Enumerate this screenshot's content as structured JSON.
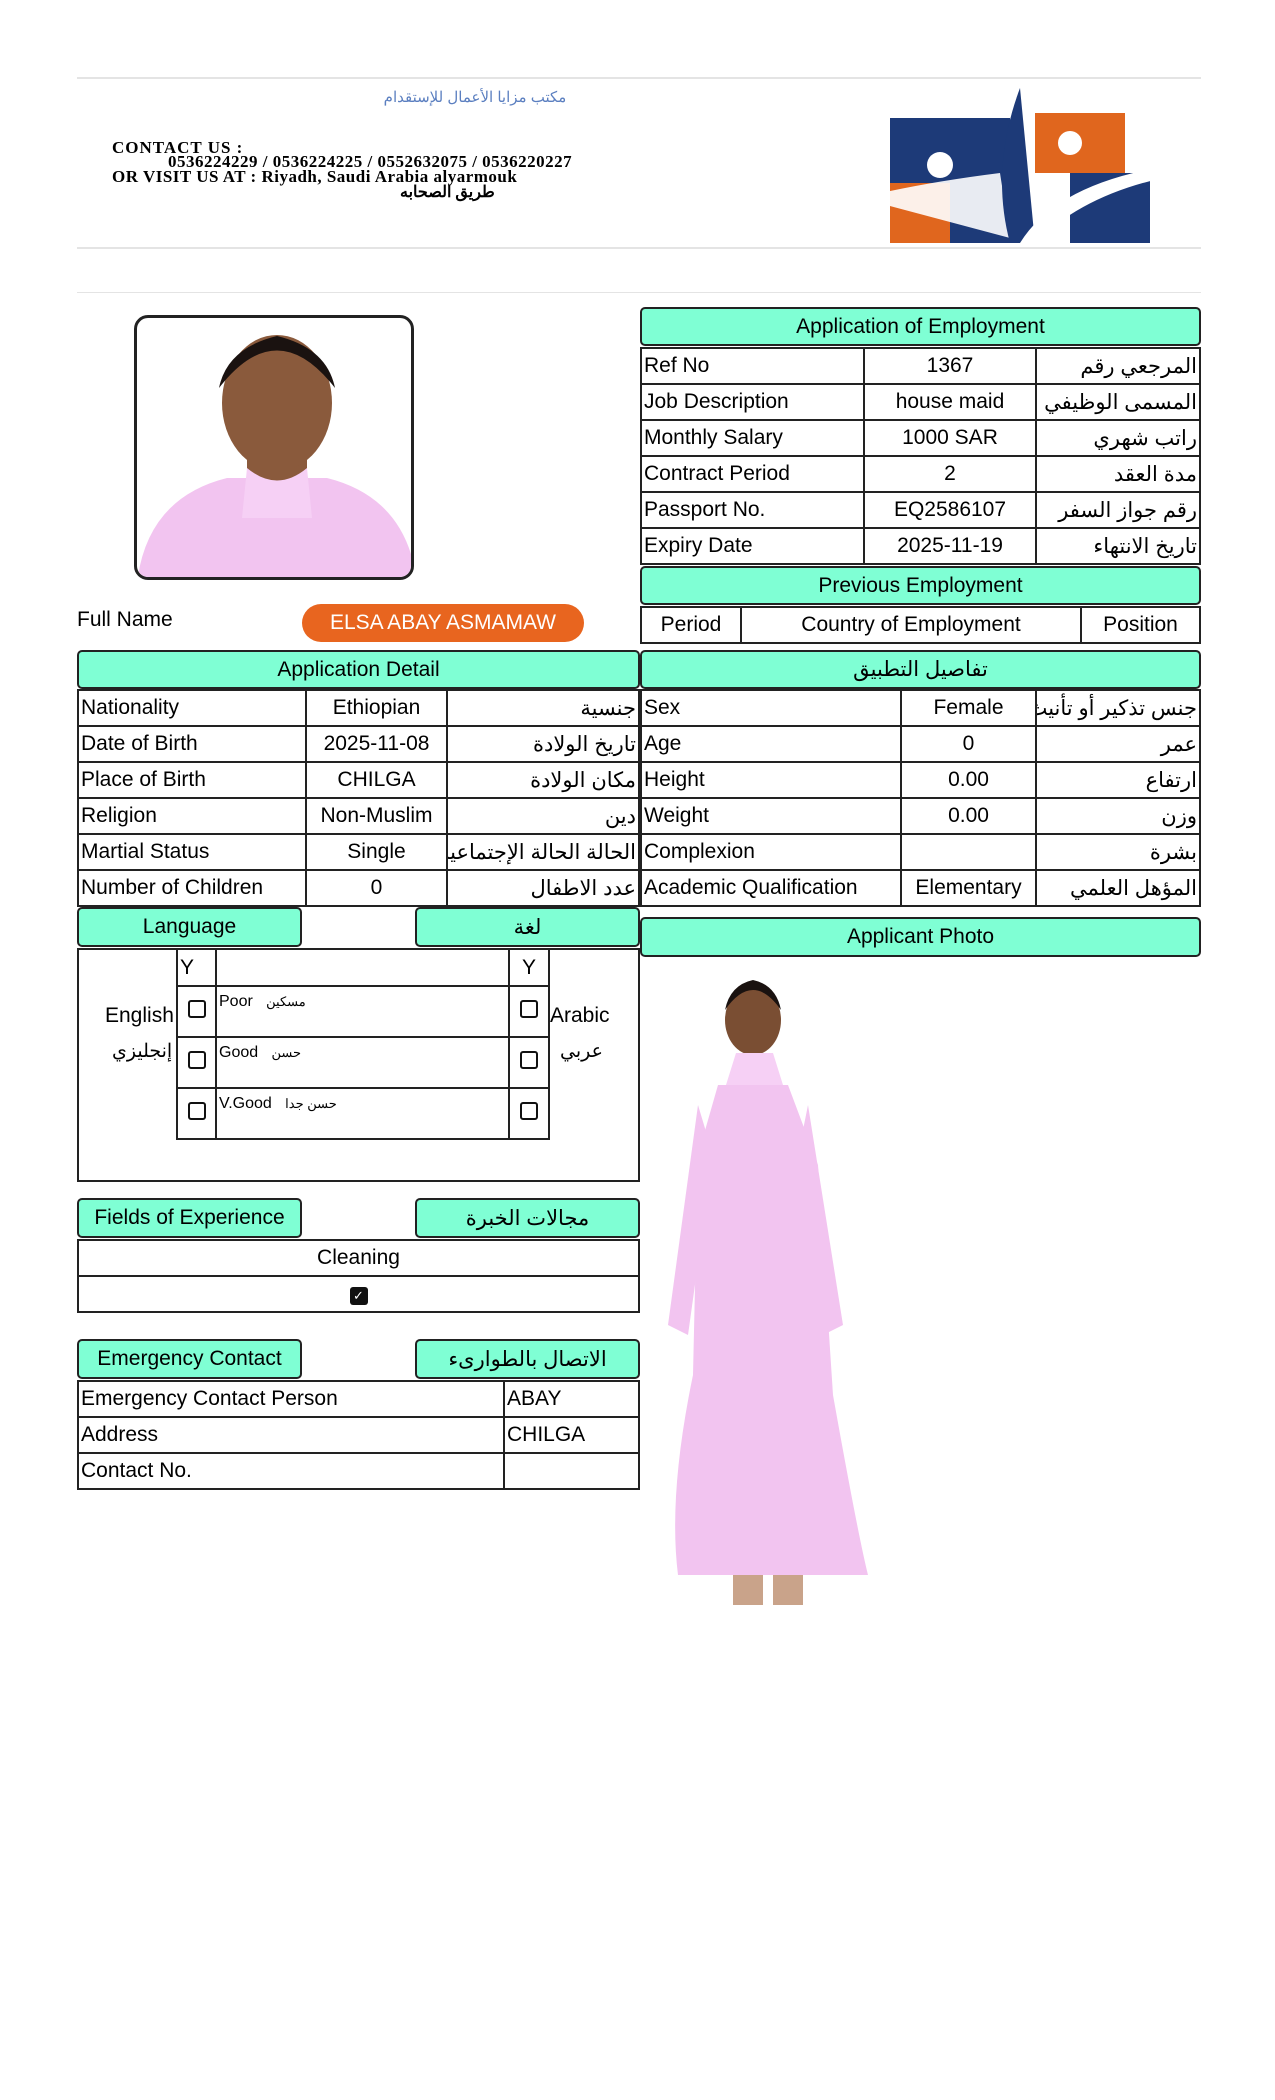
{
  "header": {
    "arabic_title": "مكتب مزايا الأعمال للإستقدام",
    "contact_label": "CONTACT  US :",
    "phones": "0536224229 / 0536224225 / 0552632075 / 0536220227",
    "visit": "OR VISIT US  AT : Riyadh, Saudi Arabia alyarmouk",
    "street": "طريق الصحابه",
    "logo_colors": [
      "#1d3a78",
      "#e0661e"
    ]
  },
  "full_name": {
    "label": "Full Name",
    "value": "ELSA ABAY ASMAMAW"
  },
  "application_employment": {
    "title": "Application of Employment",
    "rows": [
      [
        "Ref No",
        "1367",
        "المرجعي رقم"
      ],
      [
        "Job Description",
        "house maid",
        "المسمى الوظيفي"
      ],
      [
        "Monthly Salary",
        "1000 SAR",
        "راتب شهري"
      ],
      [
        "Contract Period",
        "2",
        "مدة العقد"
      ],
      [
        "Passport No.",
        "EQ2586107",
        "رقم جواز السفر"
      ],
      [
        "Expiry Date",
        "2025-11-19",
        "تاريخ الانتهاء"
      ]
    ]
  },
  "previous_employment": {
    "title": "Previous Employment",
    "columns": [
      "Period",
      "Country of Employment",
      "Position"
    ]
  },
  "application_detail": {
    "title": "Application Detail",
    "title_ar": "تفاصيل التطبيق",
    "left_rows": [
      [
        "Nationality",
        "Ethiopian",
        "جنسية"
      ],
      [
        "Date of Birth",
        "2025-11-08",
        "تاريخ الولادة"
      ],
      [
        "Place of Birth",
        "CHILGA",
        "مكان الولادة"
      ],
      [
        "Religion",
        "Non-Muslim",
        "دين"
      ],
      [
        "Martial Status",
        "Single",
        "الحالة الحالة الإجتماعية"
      ],
      [
        "Number of Children",
        "0",
        "عدد الاطفال"
      ]
    ],
    "right_rows": [
      [
        "Sex",
        "Female",
        "جنس تذكير أو تأنيث"
      ],
      [
        "Age",
        "0",
        "عمر"
      ],
      [
        "Height",
        "0.00",
        "ارتفاع"
      ],
      [
        "Weight",
        "0.00",
        "وزن"
      ],
      [
        "Complexion",
        "",
        "بشرة"
      ],
      [
        "Academic Qualification",
        "Elementary",
        "المؤهل العلمي"
      ]
    ]
  },
  "language": {
    "title": "Language",
    "title_ar": "لغة",
    "y": "Y",
    "english": "English",
    "english_ar": "إنجليزي",
    "arabic": "Arabic",
    "arabic_ar": "عربي",
    "levels": [
      {
        "en": "Poor",
        "ar": "مسكين",
        "english_checked": false,
        "arabic_checked": false
      },
      {
        "en": "Good",
        "ar": "حسن",
        "english_checked": false,
        "arabic_checked": false
      },
      {
        "en": "V.Good",
        "ar": "حسن جدا",
        "english_checked": false,
        "arabic_checked": false
      }
    ]
  },
  "experience": {
    "title": "Fields of Experience",
    "title_ar": "مجالات الخبرة",
    "field": "Cleaning",
    "checked": true
  },
  "emergency": {
    "title": "Emergency Contact",
    "title_ar": "الاتصال بالطوارىء",
    "rows": [
      [
        "Emergency Contact Person",
        "ABAY"
      ],
      [
        "Address",
        "CHILGA"
      ],
      [
        "Contact No.",
        ""
      ]
    ]
  },
  "applicant_photo": {
    "title": "Applicant Photo"
  },
  "colors": {
    "header_fill": "#7fffd4",
    "name_pill": "#e8651f"
  }
}
